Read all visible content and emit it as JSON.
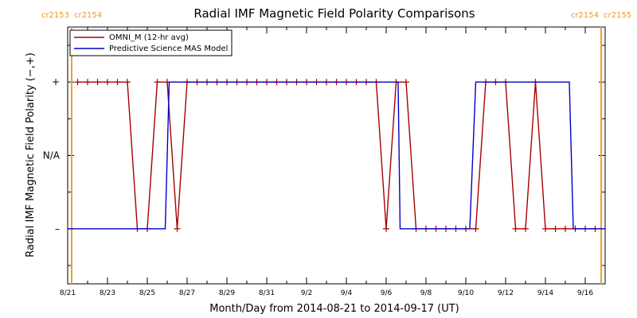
{
  "colors": {
    "omni": "#a80000",
    "model": "#0000cc",
    "cr_marker": "#f0a030",
    "axis": "#000000"
  },
  "chart_data": {
    "type": "line",
    "title": "Radial IMF Magnetic Field Polarity Comparisons",
    "xlabel": "Month/Day from 2014-08-21 to 2014-09-17 (UT)",
    "ylabel": "Radial IMF Magnetic Field Polarity (−,+)",
    "xlim": [
      0,
      27.0
    ],
    "ylim": [
      -1.75,
      1.75
    ],
    "grid": false,
    "legend_position": "top-left",
    "y_ticks": [
      {
        "value": 1,
        "label": "+"
      },
      {
        "value": 0,
        "label": "N/A"
      },
      {
        "value": -1,
        "label": "–"
      }
    ],
    "x_ticks": [
      {
        "day": 0,
        "label": "8/21"
      },
      {
        "day": 2,
        "label": "8/23"
      },
      {
        "day": 4,
        "label": "8/25"
      },
      {
        "day": 6,
        "label": "8/27"
      },
      {
        "day": 8,
        "label": "8/29"
      },
      {
        "day": 10,
        "label": "8/31"
      },
      {
        "day": 12,
        "label": "9/2"
      },
      {
        "day": 14,
        "label": "9/4"
      },
      {
        "day": 16,
        "label": "9/6"
      },
      {
        "day": 18,
        "label": "9/8"
      },
      {
        "day": 20,
        "label": "9/10"
      },
      {
        "day": 22,
        "label": "9/12"
      },
      {
        "day": 24,
        "label": "9/14"
      },
      {
        "day": 26,
        "label": "9/16"
      }
    ],
    "carrington_markers": [
      {
        "day": 0.2,
        "left_label": "cr2153",
        "right_label": "cr2154",
        "side": "left"
      },
      {
        "day": 26.8,
        "left_label": "cr2154",
        "right_label": "cr2155",
        "side": "right"
      }
    ],
    "series": [
      {
        "name": "OMNI_M (12-hr avg)",
        "color": "#a80000",
        "markers": true,
        "points": [
          [
            0.5,
            1
          ],
          [
            1.0,
            1
          ],
          [
            1.5,
            1
          ],
          [
            2.0,
            1
          ],
          [
            2.5,
            1
          ],
          [
            3.0,
            1
          ],
          [
            3.5,
            -1
          ],
          [
            4.0,
            -1
          ],
          [
            4.5,
            1
          ],
          [
            5.0,
            1
          ],
          [
            5.5,
            -1
          ],
          [
            6.0,
            1
          ],
          [
            6.5,
            1
          ],
          [
            7.0,
            1
          ],
          [
            7.5,
            1
          ],
          [
            8.0,
            1
          ],
          [
            8.5,
            1
          ],
          [
            9.0,
            1
          ],
          [
            9.5,
            1
          ],
          [
            10.0,
            1
          ],
          [
            10.5,
            1
          ],
          [
            11.0,
            1
          ],
          [
            11.5,
            1
          ],
          [
            12.0,
            1
          ],
          [
            12.5,
            1
          ],
          [
            13.0,
            1
          ],
          [
            13.5,
            1
          ],
          [
            14.0,
            1
          ],
          [
            14.5,
            1
          ],
          [
            15.0,
            1
          ],
          [
            15.5,
            1
          ],
          [
            16.0,
            -1
          ],
          [
            16.5,
            1
          ],
          [
            17.0,
            1
          ],
          [
            17.5,
            -1
          ],
          [
            18.0,
            -1
          ],
          [
            18.5,
            -1
          ],
          [
            19.0,
            -1
          ],
          [
            19.5,
            -1
          ],
          [
            20.0,
            -1
          ],
          [
            20.5,
            -1
          ],
          [
            21.0,
            1
          ],
          [
            21.5,
            1
          ],
          [
            22.0,
            1
          ],
          [
            22.5,
            -1
          ],
          [
            23.0,
            -1
          ],
          [
            23.5,
            1
          ],
          [
            24.0,
            -1
          ],
          [
            24.5,
            -1
          ],
          [
            25.0,
            -1
          ],
          [
            25.5,
            -1
          ],
          [
            26.0,
            -1
          ],
          [
            26.5,
            -1
          ]
        ]
      },
      {
        "name": "Predictive Science MAS Model",
        "color": "#0000cc",
        "markers": false,
        "points": [
          [
            0.0,
            -1
          ],
          [
            4.9,
            -1
          ],
          [
            5.1,
            1
          ],
          [
            16.6,
            1
          ],
          [
            16.7,
            -1
          ],
          [
            20.2,
            -1
          ],
          [
            20.5,
            1
          ],
          [
            25.2,
            1
          ],
          [
            25.4,
            -1
          ],
          [
            27.0,
            -1
          ]
        ]
      }
    ]
  }
}
